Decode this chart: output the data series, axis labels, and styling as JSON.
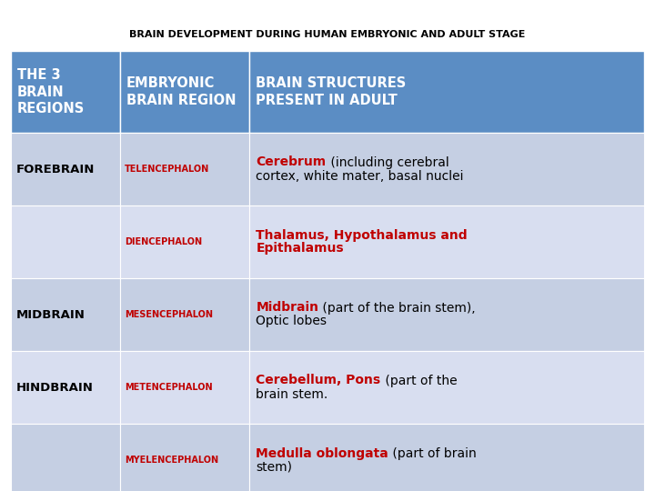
{
  "title": "BRAIN DEVELOPMENT DURING HUMAN EMBRYONIC AND ADULT STAGE",
  "title_fontsize": 8.5,
  "title_color": "#000000",
  "header_bg": "#5B8DC4",
  "header_text_color": "#FFFFFF",
  "col1_header": "THE 3\nBRAIN\nREGIONS",
  "col2_header": "EMBRYONIC\nBRAIN REGION",
  "col3_header": "BRAIN STRUCTURES\nPRESENT IN ADULT",
  "red_color": "#C00000",
  "black_color": "#000000",
  "white_color": "#FFFFFF",
  "rows": [
    {
      "col1": "FOREBRAIN",
      "col2": "TELENCEPHALON",
      "col3_bold": "Cerebrum",
      "col3_rest_line1": " (including cerebral",
      "col3_rest_line2": "cortex, white mater, basal nuclei",
      "bg": "#C5CFE3"
    },
    {
      "col1": "",
      "col2": "DIENCEPHALON",
      "col3_bold": "Thalamus, Hypothalamus and",
      "col3_bold2": "Epithalamus",
      "col3_rest_line1": "",
      "col3_rest_line2": "",
      "bg": "#D8DEF0"
    },
    {
      "col1": "MIDBRAIN",
      "col2": "MESENCEPHALON",
      "col3_bold": "Midbrain",
      "col3_bold2": "",
      "col3_rest_line1": " (part of the brain stem),",
      "col3_rest_line2": "Optic lobes",
      "bg": "#C5CFE3"
    },
    {
      "col1": "HINDBRAIN",
      "col2": "METENCEPHALON",
      "col3_bold": "Cerebellum, Pons",
      "col3_bold2": "",
      "col3_rest_line1": " (part of the",
      "col3_rest_line2": "brain stem.",
      "bg": "#D8DEF0"
    },
    {
      "col1": "",
      "col2": "MYELENCEPHALON",
      "col3_bold": "Medulla oblongata",
      "col3_bold2": "",
      "col3_rest_line1": " (part of brain",
      "col3_rest_line2": "stem)",
      "bg": "#C5CFE3"
    }
  ],
  "fig_width": 7.2,
  "fig_height": 5.4,
  "dpi": 100
}
